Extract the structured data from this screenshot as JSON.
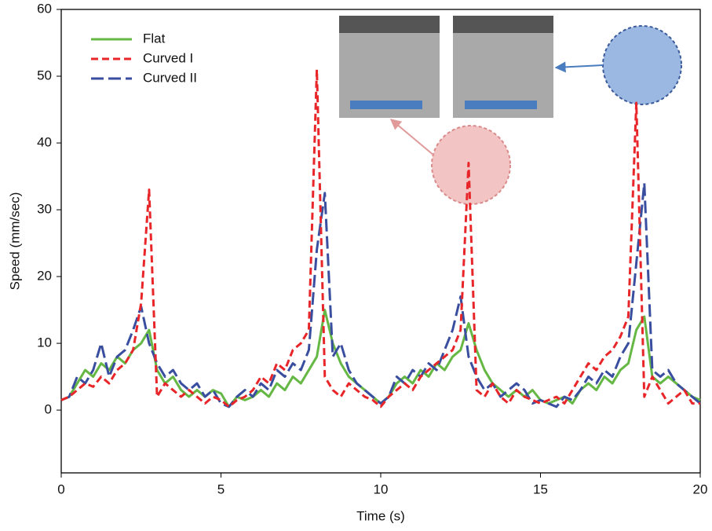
{
  "chart_data": {
    "type": "line",
    "xlabel": "Time (s)",
    "ylabel": "Speed (mm/sec)",
    "x": [
      0,
      0.25,
      0.5,
      0.75,
      1,
      1.25,
      1.5,
      1.75,
      2,
      2.25,
      2.5,
      2.75,
      3,
      3.25,
      3.5,
      3.75,
      4,
      4.25,
      4.5,
      4.75,
      5,
      5.25,
      5.5,
      5.75,
      6,
      6.25,
      6.5,
      6.75,
      7,
      7.25,
      7.5,
      7.75,
      8,
      8.25,
      8.5,
      8.75,
      9,
      9.25,
      9.5,
      9.75,
      10,
      10.25,
      10.5,
      10.75,
      11,
      11.25,
      11.5,
      11.75,
      12,
      12.25,
      12.5,
      12.75,
      13,
      13.25,
      13.5,
      13.75,
      14,
      14.25,
      14.5,
      14.75,
      15,
      15.25,
      15.5,
      15.75,
      16,
      16.25,
      16.5,
      16.75,
      17,
      17.25,
      17.5,
      17.75,
      18,
      18.25,
      18.5,
      18.75,
      19,
      19.25,
      19.5,
      19.75,
      20
    ],
    "series": [
      {
        "name": "Flat",
        "color": "#66b845",
        "dash": "none",
        "values": [
          1.5,
          2,
          4,
          6,
          5,
          7,
          6,
          8,
          7,
          9,
          10,
          12,
          6,
          4,
          5,
          3,
          2,
          3,
          2,
          3,
          2.5,
          0.5,
          2,
          1.5,
          2,
          3,
          2,
          4,
          3,
          5,
          4,
          6,
          8,
          15,
          10,
          7,
          5,
          4,
          3,
          2,
          1,
          2,
          4,
          5,
          4,
          6,
          5,
          7,
          6,
          8,
          9,
          13,
          9,
          6,
          4,
          3,
          2,
          3,
          2,
          3,
          1.5,
          1,
          1.5,
          2,
          1,
          3,
          4,
          3,
          5,
          4,
          6,
          7,
          12,
          14,
          5,
          4,
          5,
          4,
          3,
          2,
          1.5
        ]
      },
      {
        "name": "Curved I",
        "color": "#e8262a",
        "dash": "9 5",
        "values": [
          1.5,
          2,
          3,
          4,
          3.5,
          5,
          4,
          6,
          7,
          9,
          16,
          33,
          2,
          4,
          3,
          2,
          3,
          2,
          1,
          2,
          1.5,
          0.5,
          1.5,
          2,
          3,
          5,
          4,
          7,
          6,
          9,
          10,
          12,
          51,
          5,
          3,
          2,
          4,
          3,
          2,
          1.5,
          0.5,
          2,
          3,
          4,
          3,
          5,
          6,
          7,
          8,
          9,
          12,
          37,
          3,
          2,
          4,
          2,
          1,
          3,
          2,
          1.5,
          1,
          1.5,
          2,
          1,
          3,
          5,
          7,
          6,
          8,
          9,
          11,
          14,
          46,
          2,
          5,
          3,
          1,
          2,
          3,
          1,
          1
        ]
      },
      {
        "name": "Curved II",
        "color": "#3a4ea0",
        "dash": "16 6",
        "values": [
          1.5,
          2,
          5,
          4,
          6,
          10,
          5,
          8,
          9,
          12,
          15.5,
          10,
          7,
          5,
          6,
          4,
          3,
          4,
          2,
          3,
          1,
          0.5,
          2,
          3,
          2,
          4,
          3,
          6,
          5,
          7,
          6,
          9,
          24,
          32.5,
          8,
          10,
          6,
          4,
          3,
          2,
          1,
          2,
          5,
          4,
          6,
          5,
          7,
          6,
          9,
          12,
          17,
          8,
          5,
          3,
          4,
          2,
          3,
          4,
          3,
          1,
          1.5,
          1,
          0.5,
          2,
          1.5,
          3,
          5,
          4,
          6,
          5,
          8,
          10,
          22,
          34,
          6,
          5,
          6,
          4,
          3,
          2,
          1
        ]
      }
    ],
    "xlim": [
      0,
      20
    ],
    "xticks": [
      0,
      5,
      10,
      15,
      20
    ],
    "ylim": [
      -9.4,
      60
    ],
    "yticks": [
      0,
      10,
      20,
      30,
      40,
      50,
      60
    ],
    "legend": "upper left"
  }
}
